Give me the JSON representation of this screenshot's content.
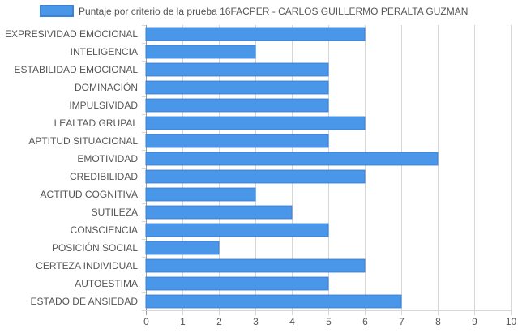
{
  "chart_data": {
    "type": "bar",
    "orientation": "horizontal",
    "categories": [
      "EXPRESIVIDAD EMOCIONAL",
      "INTELIGENCIA",
      "ESTABILIDAD EMOCIONAL",
      "DOMINACIÓN",
      "IMPULSIVIDAD",
      "LEALTAD GRUPAL",
      "APTITUD SITUACIONAL",
      "EMOTIVIDAD",
      "CREDIBILIDAD",
      "ACTITUD COGNITIVA",
      "SUTILEZA",
      "CONSCIENCIA",
      "POSICIÓN SOCIAL",
      "CERTEZA INDIVIDUAL",
      "AUTOESTIMA",
      "ESTADO DE ANSIEDAD"
    ],
    "series": [
      {
        "name": "Puntaje por criterio de la prueba 16FACPER - CARLOS GUILLERMO PERALTA GUZMAN",
        "values": [
          6,
          3,
          5,
          5,
          5,
          6,
          5,
          8,
          6,
          3,
          4,
          5,
          2,
          6,
          5,
          7
        ]
      }
    ],
    "xlim": [
      0,
      10
    ],
    "xticks": [
      "0",
      "1",
      "2",
      "3",
      "4",
      "5",
      "6",
      "7",
      "8",
      "9",
      "10"
    ],
    "grid": true,
    "legend_position": "top",
    "colors": {
      "bar_fill": "#4a96e8",
      "bar_stroke": "#3b82d9",
      "grid": "#d6d6d6",
      "axis": "#9a9a9a"
    }
  }
}
